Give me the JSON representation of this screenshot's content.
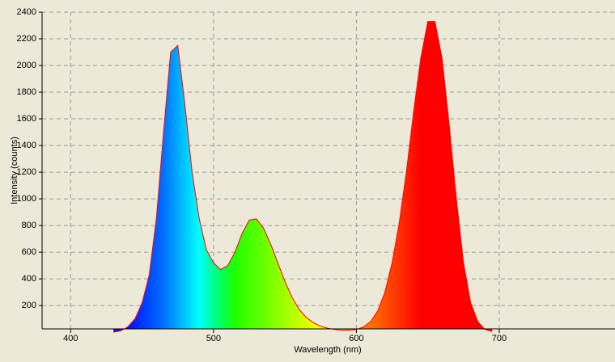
{
  "chart_data": {
    "type": "area",
    "x_label": "Wavelength (nm)",
    "y_label": "Intensity (counts)",
    "x": [
      430,
      435,
      440,
      445,
      450,
      455,
      460,
      465,
      470,
      475,
      480,
      485,
      490,
      495,
      500,
      505,
      510,
      515,
      520,
      525,
      530,
      535,
      540,
      545,
      550,
      555,
      560,
      565,
      570,
      575,
      580,
      585,
      590,
      595,
      600,
      605,
      610,
      615,
      620,
      625,
      630,
      635,
      640,
      645,
      650,
      655,
      660,
      665,
      670,
      675,
      680,
      685,
      690,
      695
    ],
    "series": [
      {
        "color": "#ff0000",
        "values": [
          0,
          10,
          40,
          100,
          220,
          430,
          850,
          1500,
          2100,
          2150,
          1700,
          1200,
          850,
          620,
          520,
          470,
          500,
          600,
          740,
          840,
          850,
          780,
          660,
          520,
          380,
          260,
          170,
          110,
          70,
          45,
          30,
          20,
          15,
          15,
          20,
          40,
          80,
          160,
          300,
          520,
          820,
          1200,
          1650,
          2050,
          2330,
          2330,
          2050,
          1550,
          1000,
          520,
          220,
          80,
          20,
          5
        ]
      }
    ],
    "xlim": [
      380,
      781
    ],
    "ylim": [
      25,
      2400
    ],
    "xticks": [
      400,
      500,
      600,
      700
    ],
    "yticks": [
      200,
      400,
      600,
      800,
      1000,
      1200,
      1400,
      1600,
      1800,
      2000,
      2200,
      2400
    ],
    "grid": true
  }
}
